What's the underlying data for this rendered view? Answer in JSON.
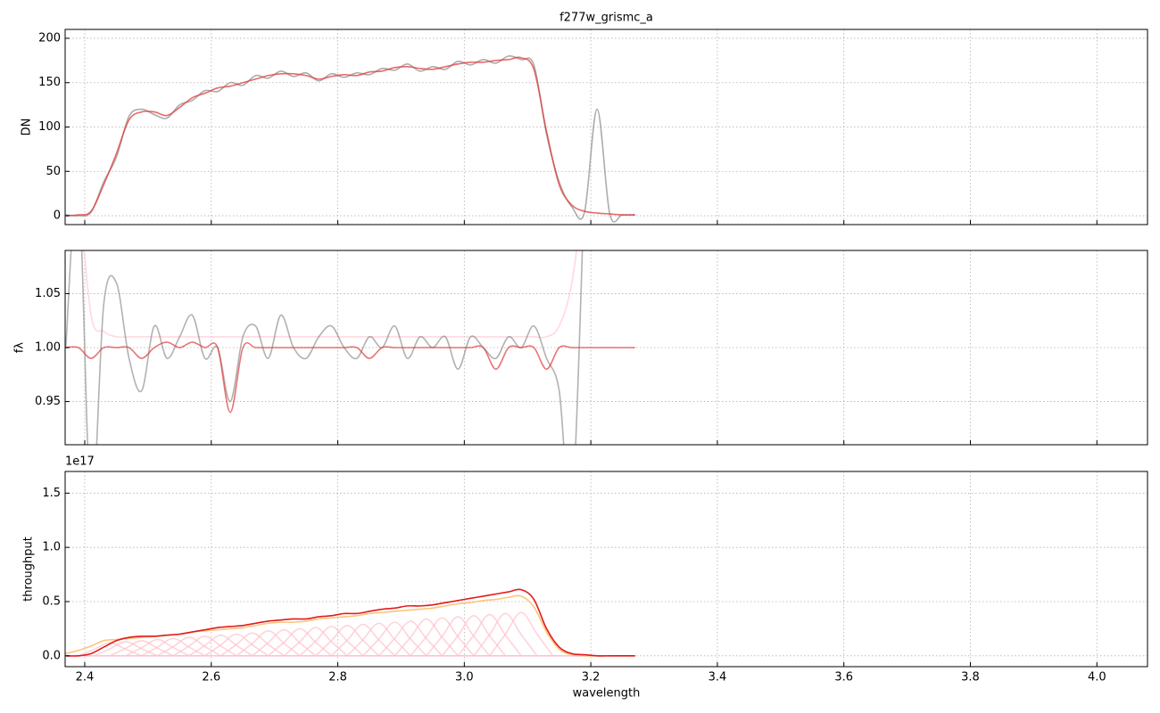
{
  "chart_data": [
    {
      "type": "line",
      "title": "f277w_grismc_a",
      "ylabel": "DN",
      "grid": true,
      "xtick_labels": false,
      "xlim": [
        2.369,
        4.08
      ],
      "xticks": [
        2.4,
        2.6,
        2.8,
        3,
        3.2,
        3.4,
        3.6,
        3.8,
        4
      ],
      "ylim": [
        -10,
        210
      ],
      "yticks": [
        0,
        50,
        100,
        150,
        200
      ],
      "x": [
        2.37,
        2.39,
        2.41,
        2.43,
        2.45,
        2.47,
        2.49,
        2.51,
        2.53,
        2.55,
        2.57,
        2.59,
        2.61,
        2.63,
        2.65,
        2.67,
        2.69,
        2.71,
        2.73,
        2.75,
        2.77,
        2.79,
        2.81,
        2.83,
        2.85,
        2.87,
        2.89,
        2.91,
        2.93,
        2.95,
        2.97,
        2.99,
        3.01,
        3.03,
        3.05,
        3.07,
        3.09,
        3.11,
        3.13,
        3.15,
        3.17,
        3.19,
        3.21,
        3.23,
        3.25,
        3.27
      ],
      "series": [
        {
          "color": "#7f7f7f",
          "alpha": 0.65,
          "values": [
            1,
            0,
            4,
            38,
            66,
            112,
            120,
            114,
            110,
            125,
            130,
            141,
            140,
            150,
            147,
            158,
            155,
            163,
            157,
            161,
            152,
            160,
            156,
            161,
            159,
            166,
            164,
            171,
            163,
            168,
            165,
            174,
            170,
            176,
            172,
            180,
            176,
            170,
            92,
            38,
            10,
            4,
            120,
            2,
            1,
            1
          ]
        },
        {
          "color": "#e03a3a",
          "alpha": 0.75,
          "values": [
            0,
            1,
            5,
            35,
            70,
            108,
            117,
            117,
            113,
            122,
            133,
            138,
            144,
            146,
            150,
            154,
            158,
            160,
            160,
            158,
            154,
            157,
            159,
            158,
            162,
            163,
            167,
            168,
            166,
            165,
            168,
            171,
            173,
            173,
            175,
            176,
            178,
            165,
            95,
            35,
            12,
            5,
            3,
            2,
            1,
            1
          ]
        }
      ]
    },
    {
      "type": "line",
      "ylabel": "fλ",
      "grid": true,
      "xtick_labels": false,
      "xlim": [
        2.369,
        4.08
      ],
      "xticks": [
        2.4,
        2.6,
        2.8,
        3,
        3.2,
        3.4,
        3.6,
        3.8,
        4
      ],
      "ylim": [
        0.91,
        1.09
      ],
      "yticks": [
        0.95,
        {
          "value": 1,
          "label": "1.00"
        },
        1.05
      ],
      "x": [
        2.37,
        2.39,
        2.41,
        2.43,
        2.45,
        2.47,
        2.49,
        2.51,
        2.53,
        2.55,
        2.57,
        2.59,
        2.61,
        2.63,
        2.65,
        2.67,
        2.69,
        2.71,
        2.73,
        2.75,
        2.77,
        2.79,
        2.81,
        2.83,
        2.85,
        2.87,
        2.89,
        2.91,
        2.93,
        2.95,
        2.97,
        2.99,
        3.01,
        3.03,
        3.05,
        3.07,
        3.09,
        3.11,
        3.13,
        3.15,
        3.17,
        3.19,
        3.21,
        3.23,
        3.25,
        3.27
      ],
      "series": [
        {
          "color": "#ffc0cb",
          "alpha": 0.6,
          "values": [
            null,
            1.15,
            1.03,
            1.015,
            1.01,
            1.01,
            1.01,
            1.01,
            1.01,
            1.01,
            1.01,
            1.01,
            1.01,
            1.01,
            1.01,
            1.01,
            1.01,
            1.01,
            1.01,
            1.01,
            1.01,
            1.01,
            1.01,
            1.01,
            1.01,
            1.01,
            1.01,
            1.01,
            1.01,
            1.01,
            1.01,
            1.01,
            1.01,
            1.01,
            1.01,
            1.01,
            1.01,
            1.01,
            1.01,
            1.02,
            1.06,
            1.15,
            null,
            null,
            null,
            null
          ]
        },
        {
          "color": "#7f7f7f",
          "alpha": 0.6,
          "values": [
            1,
            1.15,
            0.85,
            1.04,
            1.06,
            0.99,
            0.96,
            1.02,
            0.99,
            1.01,
            1.03,
            0.99,
            1,
            0.95,
            1.01,
            1.02,
            0.99,
            1.03,
            1,
            0.99,
            1.01,
            1.02,
            1,
            0.99,
            1.01,
            1,
            1.02,
            0.99,
            1.01,
            1,
            1.01,
            0.98,
            1.01,
            1,
            0.99,
            1.01,
            1,
            1.02,
            0.99,
            0.96,
            0.85,
            1.15,
            null,
            null,
            null,
            null
          ]
        },
        {
          "color": "#e03a3a",
          "alpha": 0.7,
          "values": [
            1,
            1,
            0.99,
            1,
            1,
            1,
            0.99,
            1,
            1.005,
            1,
            1.005,
            1,
            1,
            0.94,
            1,
            1,
            1,
            1,
            1,
            1,
            1,
            1,
            1,
            1,
            0.99,
            1,
            1,
            1,
            1,
            1,
            1,
            1,
            1,
            1,
            0.98,
            1,
            1,
            1,
            0.98,
            1,
            1,
            1,
            1,
            1,
            1,
            1
          ]
        }
      ]
    },
    {
      "type": "line",
      "ylabel": "throughput",
      "xlabel": "wavelength",
      "offset_text": "1e17",
      "grid": true,
      "xtick_labels": true,
      "xlim": [
        2.369,
        4.08
      ],
      "xticks": [
        2.4,
        2.6,
        2.8,
        {
          "value": 3,
          "label": "3.0"
        },
        3.2,
        3.4,
        3.6,
        3.8,
        {
          "value": 4,
          "label": "4.0"
        }
      ],
      "ylim": [
        -0.1,
        1.7
      ],
      "yticks": [
        {
          "value": 0,
          "label": "0.0"
        },
        0.5,
        {
          "value": 1,
          "label": "1.0"
        },
        1.5
      ],
      "x": [
        2.37,
        2.39,
        2.41,
        2.43,
        2.45,
        2.47,
        2.49,
        2.51,
        2.53,
        2.55,
        2.57,
        2.59,
        2.61,
        2.63,
        2.65,
        2.67,
        2.69,
        2.71,
        2.73,
        2.75,
        2.77,
        2.79,
        2.81,
        2.83,
        2.85,
        2.87,
        2.89,
        2.91,
        2.93,
        2.95,
        2.97,
        2.99,
        3.01,
        3.03,
        3.05,
        3.07,
        3.09,
        3.11,
        3.13,
        3.15,
        3.17,
        3.19,
        3.21,
        3.23,
        3.25,
        3.27
      ],
      "series": [
        {
          "color": "#ffc0cb",
          "alpha": 0.7,
          "x": [
            2.39,
            2.415,
            2.44,
            2.465,
            2.49
          ],
          "values": [
            0,
            0.06,
            0.12,
            0.06,
            0
          ]
        },
        {
          "color": "#ffc0cb",
          "alpha": 0.7,
          "x": [
            2.415,
            2.44,
            2.465,
            2.49,
            2.515
          ],
          "values": [
            0,
            0.065,
            0.13,
            0.065,
            0
          ]
        },
        {
          "color": "#ffc0cb",
          "alpha": 0.7,
          "x": [
            2.44,
            2.465,
            2.49,
            2.515,
            2.54
          ],
          "values": [
            0,
            0.07,
            0.14,
            0.07,
            0
          ]
        },
        {
          "color": "#ffc0cb",
          "alpha": 0.7,
          "x": [
            2.465,
            2.49,
            2.515,
            2.54,
            2.565
          ],
          "values": [
            0,
            0.075,
            0.15,
            0.075,
            0
          ]
        },
        {
          "color": "#ffc0cb",
          "alpha": 0.7,
          "x": [
            2.49,
            2.515,
            2.54,
            2.565,
            2.59
          ],
          "values": [
            0,
            0.08,
            0.16,
            0.08,
            0
          ]
        },
        {
          "color": "#ffc0cb",
          "alpha": 0.7,
          "x": [
            2.515,
            2.54,
            2.565,
            2.59,
            2.615
          ],
          "values": [
            0,
            0.085,
            0.17,
            0.085,
            0
          ]
        },
        {
          "color": "#ffc0cb",
          "alpha": 0.7,
          "x": [
            2.54,
            2.565,
            2.59,
            2.615,
            2.64
          ],
          "values": [
            0,
            0.09,
            0.18,
            0.09,
            0
          ]
        },
        {
          "color": "#ffc0cb",
          "alpha": 0.7,
          "x": [
            2.565,
            2.59,
            2.615,
            2.64,
            2.665
          ],
          "values": [
            0,
            0.095,
            0.19,
            0.095,
            0
          ]
        },
        {
          "color": "#ffc0cb",
          "alpha": 0.7,
          "x": [
            2.59,
            2.615,
            2.64,
            2.665,
            2.69
          ],
          "values": [
            0,
            0.1,
            0.2,
            0.1,
            0
          ]
        },
        {
          "color": "#ffc0cb",
          "alpha": 0.7,
          "x": [
            2.615,
            2.64,
            2.665,
            2.69,
            2.715
          ],
          "values": [
            0,
            0.105,
            0.21,
            0.105,
            0
          ]
        },
        {
          "color": "#ffc0cb",
          "alpha": 0.7,
          "x": [
            2.64,
            2.665,
            2.69,
            2.715,
            2.74
          ],
          "values": [
            0,
            0.115,
            0.23,
            0.115,
            0
          ]
        },
        {
          "color": "#ffc0cb",
          "alpha": 0.7,
          "x": [
            2.665,
            2.69,
            2.715,
            2.74,
            2.765
          ],
          "values": [
            0,
            0.12,
            0.24,
            0.12,
            0
          ]
        },
        {
          "color": "#ffc0cb",
          "alpha": 0.7,
          "x": [
            2.69,
            2.715,
            2.74,
            2.765,
            2.79
          ],
          "values": [
            0,
            0.125,
            0.25,
            0.125,
            0
          ]
        },
        {
          "color": "#ffc0cb",
          "alpha": 0.7,
          "x": [
            2.715,
            2.74,
            2.765,
            2.79,
            2.815
          ],
          "values": [
            0,
            0.13,
            0.26,
            0.13,
            0
          ]
        },
        {
          "color": "#ffc0cb",
          "alpha": 0.7,
          "x": [
            2.74,
            2.765,
            2.79,
            2.815,
            2.84
          ],
          "values": [
            0,
            0.135,
            0.27,
            0.135,
            0
          ]
        },
        {
          "color": "#ffc0cb",
          "alpha": 0.7,
          "x": [
            2.765,
            2.79,
            2.815,
            2.84,
            2.865
          ],
          "values": [
            0,
            0.14,
            0.28,
            0.14,
            0
          ]
        },
        {
          "color": "#ffc0cb",
          "alpha": 0.7,
          "x": [
            2.79,
            2.815,
            2.84,
            2.865,
            2.89
          ],
          "values": [
            0,
            0.145,
            0.29,
            0.145,
            0
          ]
        },
        {
          "color": "#ffc0cb",
          "alpha": 0.7,
          "x": [
            2.815,
            2.84,
            2.865,
            2.89,
            2.915
          ],
          "values": [
            0,
            0.15,
            0.3,
            0.15,
            0
          ]
        },
        {
          "color": "#ffc0cb",
          "alpha": 0.7,
          "x": [
            2.84,
            2.865,
            2.89,
            2.915,
            2.94
          ],
          "values": [
            0,
            0.155,
            0.31,
            0.155,
            0
          ]
        },
        {
          "color": "#ffc0cb",
          "alpha": 0.7,
          "x": [
            2.865,
            2.89,
            2.915,
            2.94,
            2.965
          ],
          "values": [
            0,
            0.16,
            0.32,
            0.16,
            0
          ]
        },
        {
          "color": "#ffc0cb",
          "alpha": 0.7,
          "x": [
            2.89,
            2.915,
            2.94,
            2.965,
            2.99
          ],
          "values": [
            0,
            0.17,
            0.34,
            0.17,
            0
          ]
        },
        {
          "color": "#ffc0cb",
          "alpha": 0.7,
          "x": [
            2.915,
            2.94,
            2.965,
            2.99,
            3.015
          ],
          "values": [
            0,
            0.175,
            0.35,
            0.175,
            0
          ]
        },
        {
          "color": "#ffc0cb",
          "alpha": 0.7,
          "x": [
            2.94,
            2.965,
            2.99,
            3.015,
            3.04
          ],
          "values": [
            0,
            0.18,
            0.36,
            0.18,
            0
          ]
        },
        {
          "color": "#ffc0cb",
          "alpha": 0.7,
          "x": [
            2.965,
            2.99,
            3.015,
            3.04,
            3.065
          ],
          "values": [
            0,
            0.185,
            0.37,
            0.185,
            0
          ]
        },
        {
          "color": "#ffc0cb",
          "alpha": 0.7,
          "x": [
            2.99,
            3.015,
            3.04,
            3.065,
            3.09
          ],
          "values": [
            0,
            0.19,
            0.38,
            0.19,
            0
          ]
        },
        {
          "color": "#ffc0cb",
          "alpha": 0.7,
          "x": [
            3.015,
            3.04,
            3.065,
            3.09,
            3.115
          ],
          "values": [
            0,
            0.195,
            0.39,
            0.195,
            0
          ]
        },
        {
          "color": "#ffc0cb",
          "alpha": 0.7,
          "x": [
            3.04,
            3.065,
            3.09,
            3.115,
            3.14
          ],
          "values": [
            0,
            0.2,
            0.4,
            0.2,
            0
          ]
        },
        {
          "color": "#ffc0cb",
          "alpha": 0.9,
          "values": [
            0,
            0,
            0,
            0,
            0,
            0,
            0,
            0,
            0,
            0,
            0,
            0,
            0,
            0,
            0,
            0,
            0,
            0,
            0,
            0,
            0,
            0,
            0,
            0,
            0,
            0,
            0,
            0,
            0,
            0,
            0,
            0,
            0,
            0,
            0,
            0,
            0,
            0,
            0,
            0,
            0,
            0,
            0,
            0,
            0,
            0
          ]
        },
        {
          "color": "#fdbf6f",
          "alpha": 0.9,
          "values": [
            0.02,
            0.05,
            0.09,
            0.14,
            0.15,
            0.16,
            0.17,
            0.18,
            0.19,
            0.2,
            0.22,
            0.23,
            0.24,
            0.25,
            0.26,
            0.28,
            0.3,
            0.31,
            0.31,
            0.32,
            0.34,
            0.35,
            0.36,
            0.37,
            0.39,
            0.4,
            0.41,
            0.42,
            0.43,
            0.44,
            0.46,
            0.48,
            0.49,
            0.51,
            0.52,
            0.54,
            0.55,
            0.45,
            0.22,
            0.06,
            0.01,
            0,
            0,
            0,
            0,
            0
          ]
        },
        {
          "color": "#e31a1c",
          "alpha": 1,
          "values": [
            0,
            0,
            0.02,
            0.08,
            0.14,
            0.17,
            0.18,
            0.18,
            0.19,
            0.2,
            0.22,
            0.24,
            0.26,
            0.27,
            0.28,
            0.3,
            0.32,
            0.33,
            0.34,
            0.34,
            0.36,
            0.37,
            0.39,
            0.39,
            0.41,
            0.43,
            0.44,
            0.46,
            0.46,
            0.47,
            0.49,
            0.51,
            0.53,
            0.55,
            0.57,
            0.59,
            0.61,
            0.52,
            0.25,
            0.08,
            0.02,
            0.01,
            0,
            0,
            0,
            0
          ]
        }
      ]
    }
  ]
}
